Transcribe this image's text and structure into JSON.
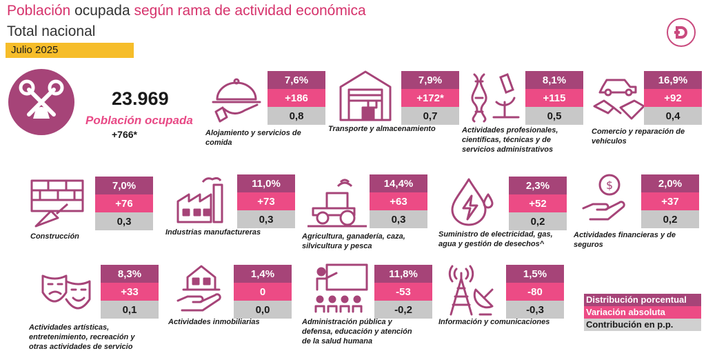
{
  "header": {
    "title_part1": "Población",
    "title_part2": "ocupada",
    "title_part3": "según rama de actividad económica",
    "subtitle": "Total nacional",
    "date": "Julio 2025"
  },
  "summary": {
    "total": "23.969",
    "label": "Población ocupada",
    "variation": "+766*"
  },
  "sectors": [
    {
      "name": "Alojamiento y servicios de comida",
      "dist": "7,6%",
      "var": "+186",
      "contrib": "0,8",
      "icon": "serving-cloche-icon"
    },
    {
      "name": "Transporte y almacenamiento",
      "dist": "7,9%",
      "var": "+172*",
      "contrib": "0,7",
      "icon": "warehouse-icon"
    },
    {
      "name": "Actividades profesionales, científicas, técnicas y de servicios administrativos",
      "dist": "8,1%",
      "var": "+115",
      "contrib": "0,5",
      "icon": "dna-microscope-icon"
    },
    {
      "name": "Comercio y reparación de vehículos",
      "dist": "16,9%",
      "var": "+92",
      "contrib": "0,4",
      "icon": "car-handshake-icon"
    },
    {
      "name": "Construcción",
      "dist": "7,0%",
      "var": "+76",
      "contrib": "0,3",
      "icon": "brick-trowel-icon"
    },
    {
      "name": "Industrias manufactureras",
      "dist": "11,0%",
      "var": "+73",
      "contrib": "0,3",
      "icon": "factory-icon"
    },
    {
      "name": "Agricultura, ganadería, caza, silvicultura y pesca",
      "dist": "14,4%",
      "var": "+63",
      "contrib": "0,3",
      "icon": "tractor-icon"
    },
    {
      "name": "Suministro de electricidad, gas, agua y gestión de desechos^",
      "dist": "2,3%",
      "var": "+52",
      "contrib": "0,2",
      "icon": "water-electricity-icon"
    },
    {
      "name": "Actividades financieras y de seguros",
      "dist": "2,0%",
      "var": "+37",
      "contrib": "0,2",
      "icon": "money-hand-icon"
    },
    {
      "name": "Actividades artísticas, entretenimiento, recreación y otras actividades de servicio",
      "dist": "8,3%",
      "var": "+33",
      "contrib": "0,1",
      "icon": "theater-masks-icon"
    },
    {
      "name": "Actividades inmobiliarias",
      "dist": "1,4%",
      "var": "0",
      "contrib": "0,0",
      "icon": "house-hand-icon"
    },
    {
      "name": "Administración pública y defensa, educación y atención de la salud humana",
      "dist": "11,8%",
      "var": "-53",
      "contrib": "-0,2",
      "icon": "teacher-classroom-icon"
    },
    {
      "name": "Información y comunicaciones",
      "dist": "1,5%",
      "var": "-80",
      "contrib": "-0,3",
      "icon": "antenna-tower-icon"
    }
  ],
  "legend": {
    "dist": "Distribución porcentual",
    "var": "Variación absoluta",
    "contrib": "Contribución en p.p."
  },
  "colors": {
    "dist": "#a64478",
    "var": "#ec4b85",
    "contrib": "#c8c8c8",
    "accent": "#d6336c",
    "date_badge": "#f6bd2a"
  }
}
